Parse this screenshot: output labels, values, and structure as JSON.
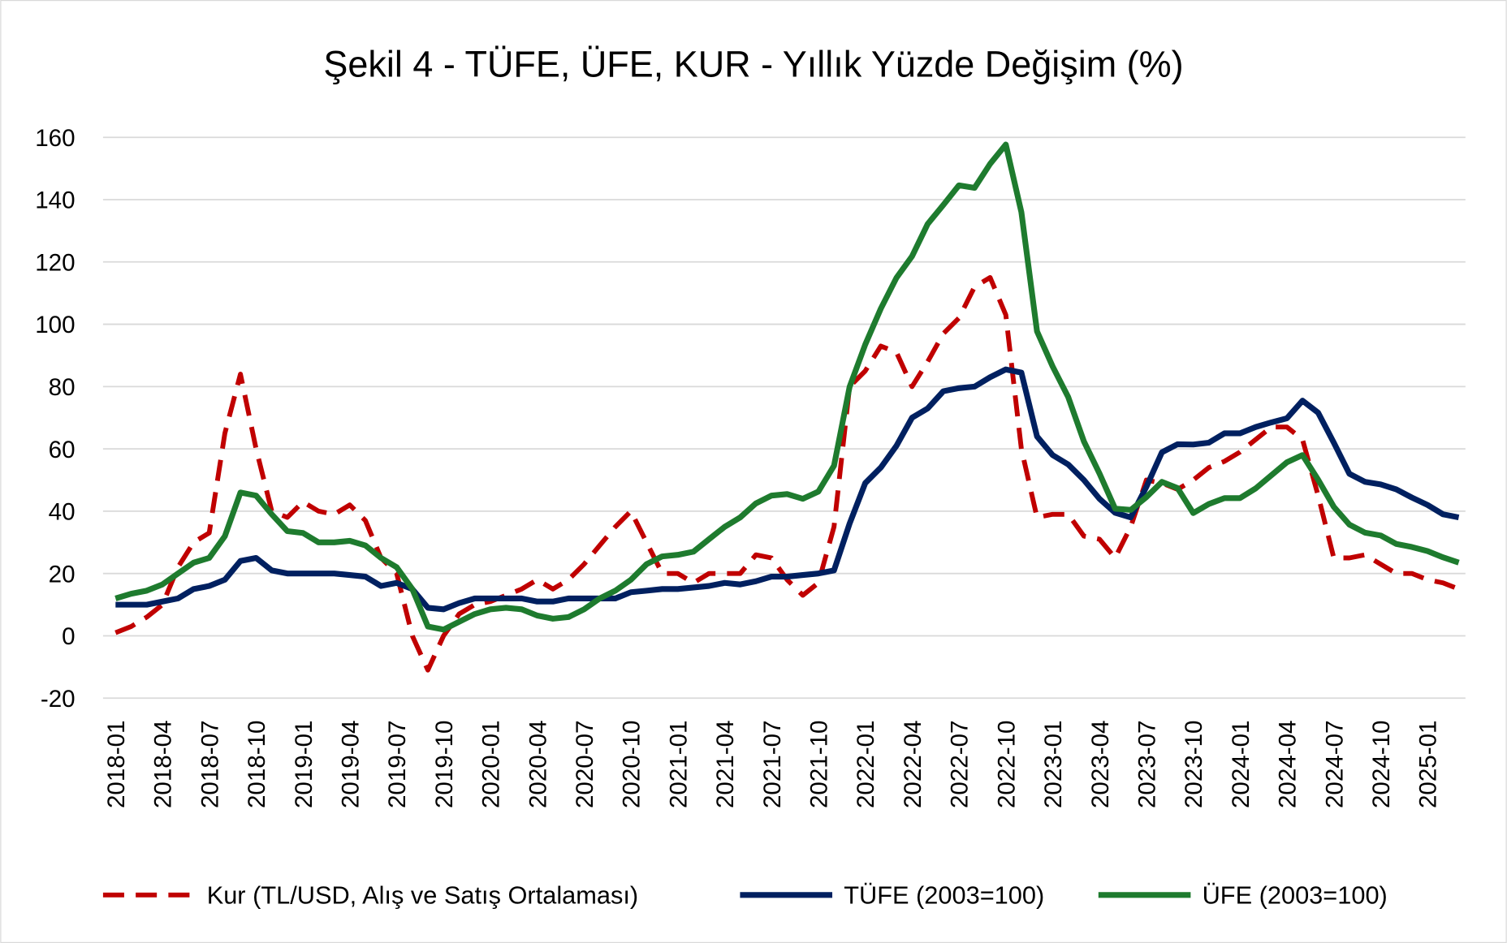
{
  "chart_data": {
    "type": "line",
    "title": "Şekil 4 - TÜFE, ÜFE, KUR - Yıllık Yüzde Değişim (%)",
    "categories": [
      "2018-01",
      null,
      null,
      "2018-04",
      null,
      null,
      "2018-07",
      null,
      null,
      "2018-10",
      null,
      null,
      "2019-01",
      null,
      null,
      "2019-04",
      null,
      null,
      "2019-07",
      null,
      null,
      "2019-10",
      null,
      null,
      "2020-01",
      null,
      null,
      "2020-04",
      null,
      null,
      "2020-07",
      null,
      null,
      "2020-10",
      null,
      null,
      "2021-01",
      null,
      null,
      "2021-04",
      null,
      null,
      "2021-07",
      null,
      null,
      "2021-10",
      null,
      null,
      "2022-01",
      null,
      null,
      "2022-04",
      null,
      null,
      "2022-07",
      null,
      null,
      "2022-10",
      null,
      null,
      "2023-01",
      null,
      null,
      "2023-04",
      null,
      null,
      "2023-07",
      null,
      null,
      "2023-10",
      null,
      null,
      "2024-01",
      null,
      null,
      "2024-04",
      null,
      null,
      "2024-07",
      null,
      null,
      "2024-10",
      null,
      null,
      "2025-01",
      null,
      null
    ],
    "series": [
      {
        "name": "Kur (TL/USD, Alış ve Satış Ortalaması)",
        "color": "#c00000",
        "dashed": true,
        "values": [
          1,
          3,
          6,
          10,
          22,
          30,
          33,
          65,
          84,
          60,
          40,
          38,
          43,
          40,
          39,
          42,
          37,
          25,
          20,
          0,
          -11,
          0,
          7,
          10,
          11,
          13,
          15,
          18,
          15,
          18,
          23,
          29,
          35,
          40,
          30,
          20,
          20,
          17,
          20,
          20,
          20,
          26,
          25,
          18,
          13,
          17,
          35,
          80,
          85,
          93,
          91,
          80,
          88,
          97,
          102,
          112,
          115,
          103,
          60,
          38,
          39,
          39,
          32,
          31,
          25,
          35,
          50,
          49,
          47,
          50,
          54,
          56,
          59,
          63,
          67,
          67,
          63,
          45,
          25,
          25,
          26,
          23,
          20,
          20,
          18,
          17,
          15
        ]
      },
      {
        "name": "TÜFE (2003=100)",
        "color": "#002060",
        "dashed": false,
        "values": [
          10,
          10,
          10,
          11,
          12,
          15,
          16,
          18,
          24,
          25,
          21,
          20,
          20,
          20,
          20,
          19.5,
          19,
          16,
          17,
          15,
          9,
          8.5,
          10.5,
          12,
          12,
          12,
          12,
          11,
          11,
          12,
          12,
          12,
          12,
          14,
          14.5,
          15,
          15,
          15.5,
          16,
          17,
          16.5,
          17.5,
          19,
          19,
          19.5,
          20,
          21,
          36,
          49,
          54,
          61,
          70,
          73,
          78.5,
          79.5,
          80,
          83,
          85.5,
          84.5,
          64,
          58,
          55,
          50,
          44,
          39.5,
          38,
          47.8,
          58.9,
          61.5,
          61.4,
          62,
          65,
          65,
          67,
          68.5,
          69.8,
          75.5,
          71.6,
          62,
          52,
          49.4,
          48.6,
          47,
          44.4,
          42,
          39,
          38
        ]
      },
      {
        "name": "ÜFE (2003=100)",
        "color": "#1e7b2e",
        "dashed": false,
        "values": [
          12,
          13.5,
          14.5,
          16.5,
          20,
          23.5,
          25,
          32,
          46,
          45,
          39,
          33.6,
          33,
          30,
          30,
          30.5,
          29,
          25,
          22,
          15,
          3,
          2,
          4.5,
          7,
          8.5,
          9,
          8.5,
          6.5,
          5.5,
          6,
          8.5,
          12,
          14.5,
          18,
          23,
          25.5,
          26,
          27,
          31,
          35,
          38,
          42.5,
          45,
          45.5,
          44,
          46.3,
          54.6,
          79.9,
          93.5,
          105,
          114.9,
          121.8,
          132.2,
          138.3,
          144.6,
          143.8,
          151.5,
          157.7,
          136,
          97.7,
          86.5,
          76.6,
          62.4,
          52.1,
          40.8,
          40.4,
          44.5,
          49.4,
          47.4,
          39.4,
          42.3,
          44.2,
          44.2,
          47.3,
          51.5,
          55.7,
          58,
          50.1,
          41.4,
          35.7,
          33.1,
          32.2,
          29.5,
          28.5,
          27.2,
          25.2,
          23.5
        ]
      }
    ],
    "ylim": [
      -20,
      160
    ],
    "yticks": [
      -20,
      0,
      20,
      40,
      60,
      80,
      100,
      120,
      140,
      160
    ],
    "grid": true,
    "legend": "bottom"
  }
}
